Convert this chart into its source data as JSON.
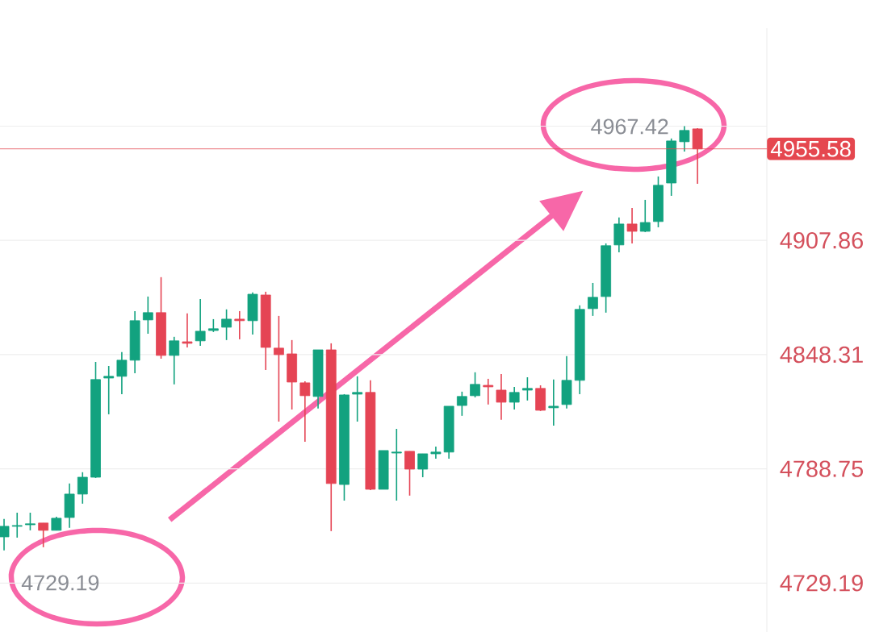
{
  "chart_data": {
    "type": "candlestick",
    "categories": [
      null,
      null,
      null,
      null,
      null,
      null,
      null,
      null,
      null,
      null,
      null,
      null,
      null,
      null,
      null,
      null,
      null,
      null,
      null,
      null,
      null,
      null,
      null,
      null,
      null,
      null,
      null,
      null,
      null,
      null,
      null,
      null,
      null,
      null,
      null,
      null,
      null,
      null,
      null,
      null,
      null,
      null,
      null,
      null,
      null,
      null,
      null,
      null,
      null,
      null,
      null,
      null,
      null,
      null
    ],
    "ohlc": [
      [
        4753.3,
        4762.6,
        4746.2,
        4758.8
      ],
      [
        4758.8,
        4765.9,
        4752.9,
        4759.2
      ],
      [
        4759.6,
        4765.9,
        4756.7,
        4760.1
      ],
      [
        4760.5,
        4760.5,
        4747.9,
        4756.7
      ],
      [
        4756.7,
        4763.8,
        4756.7,
        4763.0
      ],
      [
        4763.4,
        4781.1,
        4758.0,
        4775.6
      ],
      [
        4775.6,
        4787.0,
        4770.6,
        4784.4
      ],
      [
        4784.4,
        4844.5,
        4784.0,
        4835.3
      ],
      [
        4836.1,
        4842.4,
        4817.2,
        4837.0
      ],
      [
        4837.0,
        4849.6,
        4827.7,
        4845.4
      ],
      [
        4845.4,
        4871.0,
        4838.6,
        4866.0
      ],
      [
        4866.4,
        4878.6,
        4859.2,
        4870.2
      ],
      [
        4870.2,
        4888.7,
        4846.2,
        4847.9
      ],
      [
        4847.9,
        4857.6,
        4832.8,
        4855.5
      ],
      [
        4855.0,
        4869.8,
        4852.1,
        4854.2
      ],
      [
        4855.5,
        4877.3,
        4852.9,
        4860.5
      ],
      [
        4860.9,
        4866.8,
        4860.1,
        4861.8
      ],
      [
        4862.6,
        4871.9,
        4855.9,
        4866.8
      ],
      [
        4866.8,
        4871.0,
        4856.3,
        4866.0
      ],
      [
        4866.0,
        4880.7,
        4858.8,
        4879.8
      ],
      [
        4879.4,
        4881.1,
        4840.3,
        4852.1
      ],
      [
        4851.7,
        4868.5,
        4813.4,
        4848.3
      ],
      [
        4848.7,
        4855.9,
        4819.7,
        4834.0
      ],
      [
        4833.6,
        4834.4,
        4802.9,
        4826.9
      ],
      [
        4826.5,
        4850.8,
        4820.2,
        4850.8
      ],
      [
        4850.8,
        4854.2,
        4756.3,
        4781.1
      ],
      [
        4780.6,
        4827.7,
        4772.2,
        4827.3
      ],
      [
        4827.7,
        4837.0,
        4813.4,
        4828.6
      ],
      [
        4828.6,
        4834.9,
        4777.7,
        4778.1
      ],
      [
        4778.1,
        4798.3,
        4778.1,
        4798.3
      ],
      [
        4797.0,
        4809.6,
        4772.2,
        4797.5
      ],
      [
        4797.9,
        4797.9,
        4774.8,
        4788.6
      ],
      [
        4788.6,
        4796.6,
        4784.4,
        4796.6
      ],
      [
        4796.6,
        4800.4,
        4794.1,
        4797.5
      ],
      [
        4797.5,
        4821.4,
        4794.1,
        4821.4
      ],
      [
        4821.8,
        4829.0,
        4816.4,
        4826.5
      ],
      [
        4826.9,
        4839.1,
        4826.0,
        4832.8
      ],
      [
        4832.3,
        4835.7,
        4822.3,
        4831.5
      ],
      [
        4829.8,
        4838.2,
        4814.3,
        4823.5
      ],
      [
        4823.5,
        4831.5,
        4819.7,
        4828.6
      ],
      [
        4829.8,
        4836.5,
        4824.4,
        4830.7
      ],
      [
        4830.7,
        4832.3,
        4818.9,
        4819.3
      ],
      [
        4820.6,
        4835.3,
        4811.3,
        4821.4
      ],
      [
        4822.3,
        4847.5,
        4820.2,
        4834.9
      ],
      [
        4834.9,
        4874.0,
        4827.7,
        4871.9
      ],
      [
        4872.3,
        4885.7,
        4868.5,
        4878.2
      ],
      [
        4878.6,
        4906.3,
        4870.2,
        4905.1
      ],
      [
        4905.5,
        4919.8,
        4901.7,
        4916.4
      ],
      [
        4916.4,
        4924.8,
        4906.3,
        4912.6
      ],
      [
        4912.6,
        4929.0,
        4912.2,
        4917.2
      ],
      [
        4917.7,
        4941.2,
        4914.7,
        4936.6
      ],
      [
        4937.8,
        4961.0,
        4931.1,
        4959.7
      ],
      [
        4959.3,
        4967.42,
        4954.2,
        4965.2
      ],
      [
        4966.0,
        4966.4,
        4937.4,
        4955.58
      ]
    ],
    "colors": [
      "#12a27f",
      "#12a27f",
      "#12a27f",
      "#e54454",
      "#12a27f",
      "#12a27f",
      "#12a27f",
      "#12a27f",
      "#12a27f",
      "#12a27f",
      "#12a27f",
      "#12a27f",
      "#e54454",
      "#12a27f",
      "#e54454",
      "#12a27f",
      "#12a27f",
      "#12a27f",
      "#e54454",
      "#12a27f",
      "#e54454",
      "#e54454",
      "#e54454",
      "#e54454",
      "#12a27f",
      "#e54454",
      "#12a27f",
      "#12a27f",
      "#e54454",
      "#12a27f",
      "#12a27f",
      "#e54454",
      "#12a27f",
      "#12a27f",
      "#12a27f",
      "#12a27f",
      "#12a27f",
      "#e54454",
      "#e54454",
      "#12a27f",
      "#12a27f",
      "#e54454",
      "#12a27f",
      "#12a27f",
      "#12a27f",
      "#12a27f",
      "#12a27f",
      "#12a27f",
      "#e54454",
      "#12a27f",
      "#12a27f",
      "#12a27f",
      "#12a27f",
      "#e54454"
    ],
    "ylim": [
      4703.7,
      5018.5
    ],
    "yticks": [
      4729.19,
      4788.75,
      4848.31,
      4907.86,
      {
        "value": 4967.42,
        "label": null
      }
    ],
    "grid": "y",
    "ref_lines": [
      {
        "axis": "y",
        "value": 4955.58,
        "label": "4955.58",
        "color": "#e5474f"
      }
    ],
    "annotations": [
      "4967.42",
      "4729.19"
    ]
  }
}
